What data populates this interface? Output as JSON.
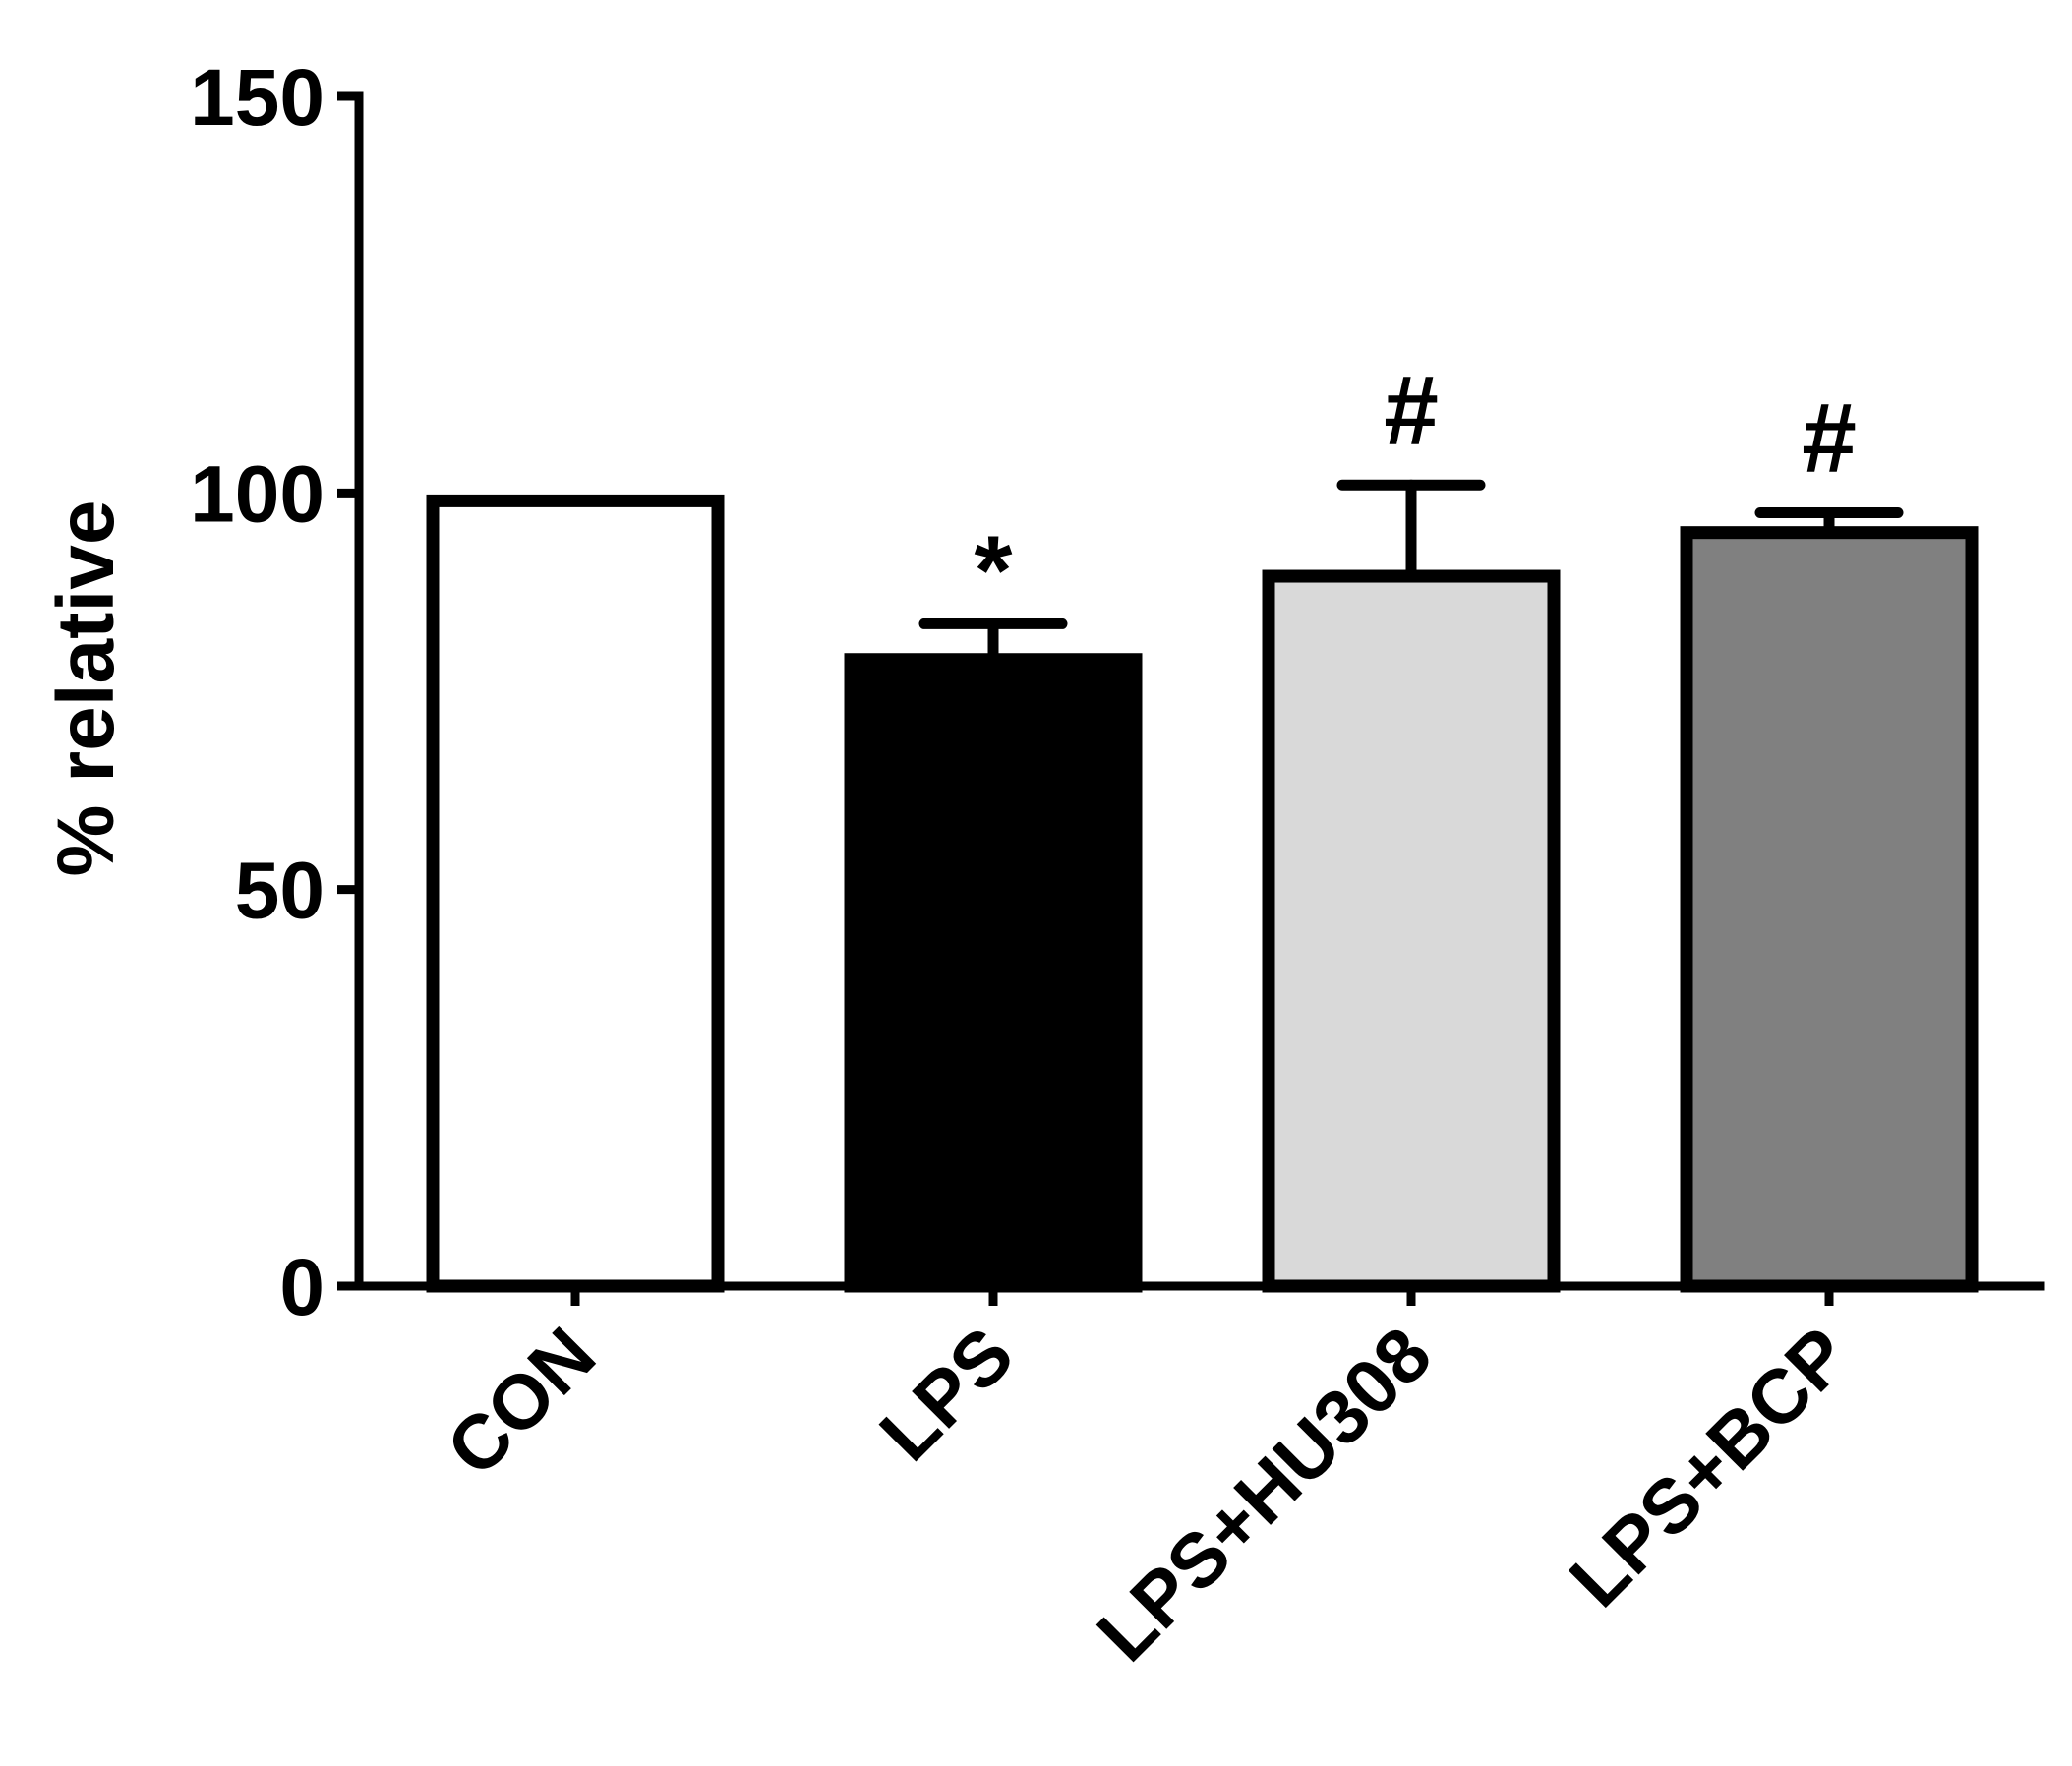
{
  "chart_data": {
    "type": "bar",
    "title": "",
    "xlabel": "",
    "ylabel": "% relative",
    "ylim": [
      0,
      150
    ],
    "yticks": [
      0,
      50,
      100,
      150
    ],
    "grid": false,
    "categories": [
      "CON",
      "LPS",
      "LPS+HU308",
      "LPS+BCP"
    ],
    "values": [
      99,
      79,
      89.5,
      95
    ],
    "errors": [
      0,
      4.5,
      11.5,
      2.5
    ],
    "significance": [
      "",
      "*",
      "#",
      "#"
    ],
    "bar_colors": [
      "#ffffff",
      "#000000",
      "#d9d9d9",
      "#808080"
    ]
  }
}
